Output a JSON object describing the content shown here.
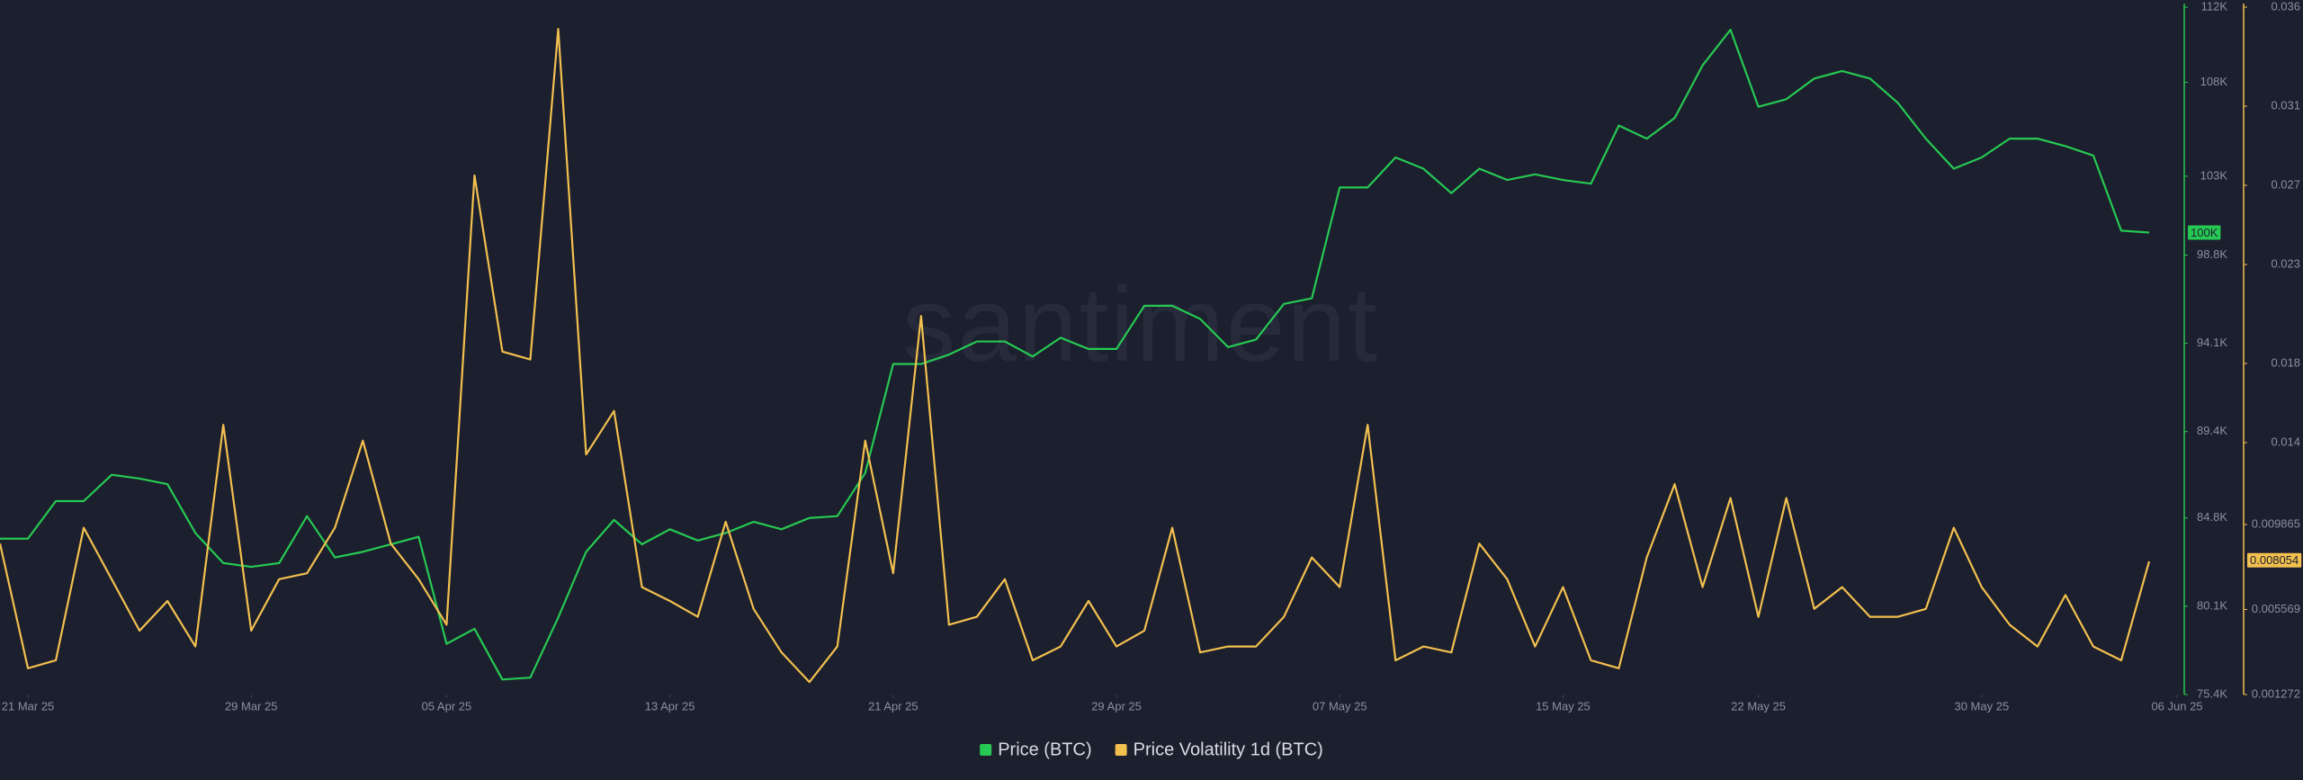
{
  "chart_data": {
    "type": "line",
    "watermark": "santiment",
    "x": [
      "2025-03-20",
      "2025-03-21",
      "2025-03-22",
      "2025-03-23",
      "2025-03-24",
      "2025-03-25",
      "2025-03-26",
      "2025-03-27",
      "2025-03-28",
      "2025-03-29",
      "2025-03-30",
      "2025-03-31",
      "2025-04-01",
      "2025-04-02",
      "2025-04-03",
      "2025-04-04",
      "2025-04-05",
      "2025-04-06",
      "2025-04-07",
      "2025-04-08",
      "2025-04-09",
      "2025-04-10",
      "2025-04-11",
      "2025-04-12",
      "2025-04-13",
      "2025-04-14",
      "2025-04-15",
      "2025-04-16",
      "2025-04-17",
      "2025-04-18",
      "2025-04-19",
      "2025-04-20",
      "2025-04-21",
      "2025-04-22",
      "2025-04-23",
      "2025-04-24",
      "2025-04-25",
      "2025-04-26",
      "2025-04-27",
      "2025-04-28",
      "2025-04-29",
      "2025-04-30",
      "2025-05-01",
      "2025-05-02",
      "2025-05-03",
      "2025-05-04",
      "2025-05-05",
      "2025-05-06",
      "2025-05-07",
      "2025-05-08",
      "2025-05-09",
      "2025-05-10",
      "2025-05-11",
      "2025-05-12",
      "2025-05-13",
      "2025-05-14",
      "2025-05-15",
      "2025-05-16",
      "2025-05-17",
      "2025-05-18",
      "2025-05-19",
      "2025-05-20",
      "2025-05-21",
      "2025-05-22",
      "2025-05-23",
      "2025-05-24",
      "2025-05-25",
      "2025-05-26",
      "2025-05-27",
      "2025-05-28",
      "2025-05-29",
      "2025-05-30",
      "2025-05-31",
      "2025-06-01",
      "2025-06-02",
      "2025-06-03",
      "2025-06-04",
      "2025-06-05"
    ],
    "xlim": [
      "2025-03-20",
      "2025-06-06"
    ],
    "xticks": [
      {
        "value": "2025-03-21",
        "label": "21 Mar 25"
      },
      {
        "value": "2025-03-29",
        "label": "29 Mar 25"
      },
      {
        "value": "2025-04-05",
        "label": "05 Apr 25"
      },
      {
        "value": "2025-04-13",
        "label": "13 Apr 25"
      },
      {
        "value": "2025-04-21",
        "label": "21 Apr 25"
      },
      {
        "value": "2025-04-29",
        "label": "29 Apr 25"
      },
      {
        "value": "2025-05-07",
        "label": "07 May 25"
      },
      {
        "value": "2025-05-15",
        "label": "15 May 25"
      },
      {
        "value": "2025-05-22",
        "label": "22 May 25"
      },
      {
        "value": "2025-05-30",
        "label": "30 May 25"
      },
      {
        "value": "2025-06-06",
        "label": "06 Jun 25"
      }
    ],
    "ylim": [
      75400,
      112000
    ],
    "yticks": [
      {
        "value": 75400,
        "label": "75.4K"
      },
      {
        "value": 80100,
        "label": "80.1K"
      },
      {
        "value": 84800,
        "label": "84.8K"
      },
      {
        "value": 89400,
        "label": "89.4K"
      },
      {
        "value": 94100,
        "label": "94.1K"
      },
      {
        "value": 98800,
        "label": "98.8K"
      },
      {
        "value": 103000,
        "label": "103K"
      },
      {
        "value": 108000,
        "label": "108K"
      },
      {
        "value": 112000,
        "label": "112K"
      }
    ],
    "y2lim": [
      0.001272,
      0.036
    ],
    "y2ticks": [
      0.001272,
      0.005569,
      0.009865,
      0.014,
      0.018,
      0.023,
      0.027,
      0.031,
      0.036
    ],
    "series": [
      {
        "name": "Price (BTC)",
        "color": "#26c953",
        "axis": "y",
        "values": [
          83700,
          83700,
          85700,
          85700,
          87100,
          86900,
          86600,
          84000,
          82400,
          82200,
          82400,
          84900,
          82700,
          83000,
          83400,
          83800,
          78100,
          78900,
          76200,
          76300,
          79500,
          83000,
          84700,
          83400,
          84200,
          83600,
          84000,
          84600,
          84200,
          84800,
          84900,
          87200,
          93000,
          93000,
          93500,
          94200,
          94200,
          93400,
          94400,
          93800,
          93800,
          96100,
          96100,
          95400,
          93900,
          94300,
          96200,
          96500,
          102400,
          102400,
          104000,
          103400,
          102100,
          103400,
          102800,
          103100,
          102800,
          102600,
          105700,
          105000,
          106100,
          108900,
          110800,
          106700,
          107100,
          108200,
          108600,
          108200,
          106900,
          105000,
          103400,
          104000,
          105000,
          105000,
          104600,
          104100,
          100100,
          100000
        ]
      },
      {
        "name": "Price Volatility 1d (BTC)",
        "color": "#f2c04f",
        "axis": "y2",
        "values": [
          0.0089,
          0.0026,
          0.003,
          0.0097,
          0.0071,
          0.0045,
          0.006,
          0.0037,
          0.0149,
          0.0045,
          0.0071,
          0.0074,
          0.0097,
          0.0141,
          0.0089,
          0.0071,
          0.0048,
          0.0275,
          0.0186,
          0.0182,
          0.0349,
          0.0134,
          0.0156,
          0.0067,
          0.006,
          0.0052,
          0.01,
          0.0056,
          0.0034,
          0.0019,
          0.0037,
          0.0141,
          0.0074,
          0.0204,
          0.0048,
          0.0052,
          0.0071,
          0.003,
          0.0037,
          0.006,
          0.0037,
          0.0045,
          0.0097,
          0.0034,
          0.0037,
          0.0037,
          0.0052,
          0.0082,
          0.0067,
          0.0149,
          0.003,
          0.0037,
          0.0034,
          0.0089,
          0.0071,
          0.0037,
          0.0067,
          0.003,
          0.0026,
          0.0082,
          0.0119,
          0.0067,
          0.0112,
          0.0052,
          0.0112,
          0.0056,
          0.0067,
          0.0052,
          0.0052,
          0.0056,
          0.0097,
          0.0067,
          0.0048,
          0.0037,
          0.0063,
          0.0037,
          0.003,
          0.008
        ]
      }
    ],
    "annotations": [
      {
        "axis": "y",
        "value": 100000,
        "label": "100K"
      },
      {
        "axis": "y2",
        "value": 0.008054,
        "label": "0.008054"
      }
    ],
    "grid": false,
    "legend": "bottom"
  }
}
